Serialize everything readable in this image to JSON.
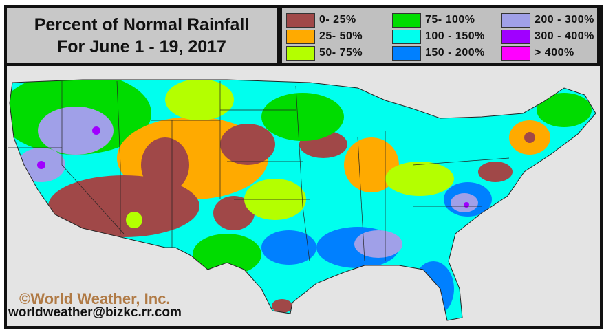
{
  "title": {
    "line1": "Percent of Normal Rainfall",
    "line2": "For June 1 - 19, 2017"
  },
  "legend": [
    {
      "label": "0- 25%",
      "color": "#a04848"
    },
    {
      "label": "25- 50%",
      "color": "#ffaa00"
    },
    {
      "label": "50- 75%",
      "color": "#b4ff00"
    },
    {
      "label": "75- 100%",
      "color": "#00dc00"
    },
    {
      "label": "100 - 150%",
      "color": "#00ffee"
    },
    {
      "label": "150 - 200%",
      "color": "#0080ff"
    },
    {
      "label": "200 - 300%",
      "color": "#a0a0e8"
    },
    {
      "label": "300 - 400%",
      "color": "#a000ff"
    },
    {
      "label": "> 400%",
      "color": "#ff00ff"
    }
  ],
  "credit": {
    "copyright": "©World Weather, Inc.",
    "email": "worldweather@bizkc.rr.com"
  }
}
